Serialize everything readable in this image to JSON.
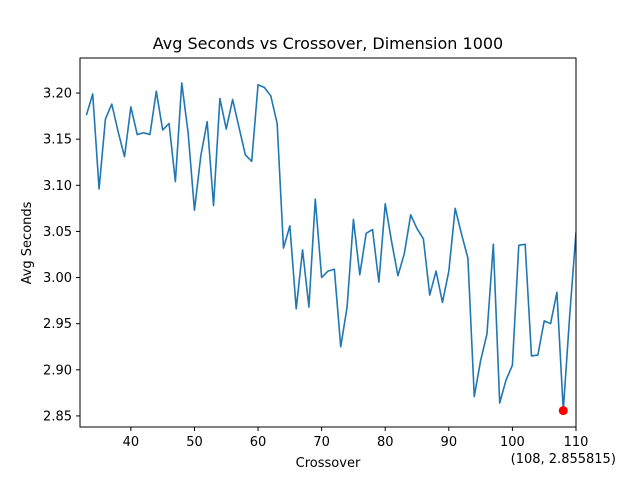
{
  "chart_data": {
    "type": "line",
    "title": "Avg Seconds vs Crossover, Dimension 1000",
    "xlabel": "Crossover",
    "ylabel": "Avg Seconds",
    "xlim": [
      32,
      110
    ],
    "ylim": [
      2.838,
      3.238
    ],
    "x_ticks": [
      40,
      50,
      60,
      70,
      80,
      90,
      100,
      110
    ],
    "x_tick_labels": [
      "40",
      "50",
      "60",
      "70",
      "80",
      "90",
      "100",
      "110"
    ],
    "y_ticks": [
      2.85,
      2.9,
      2.95,
      3.0,
      3.05,
      3.1,
      3.15,
      3.2
    ],
    "y_tick_labels": [
      "2.85",
      "2.90",
      "2.95",
      "3.00",
      "3.05",
      "3.10",
      "3.15",
      "3.20"
    ],
    "grid": false,
    "series": [
      {
        "color": "#1f77b4",
        "x": [
          33,
          34,
          35,
          36,
          37,
          38,
          39,
          40,
          41,
          42,
          43,
          44,
          45,
          46,
          47,
          48,
          49,
          50,
          51,
          52,
          53,
          54,
          55,
          56,
          57,
          58,
          59,
          60,
          61,
          62,
          63,
          64,
          65,
          66,
          67,
          68,
          69,
          70,
          71,
          72,
          73,
          74,
          75,
          76,
          77,
          78,
          79,
          80,
          81,
          82,
          83,
          84,
          85,
          86,
          87,
          88,
          89,
          90,
          91,
          92,
          93,
          94,
          95,
          96,
          97,
          98,
          99,
          100,
          101,
          102,
          103,
          104,
          105,
          106,
          107,
          108,
          109,
          110
        ],
        "y": [
          3.176,
          3.199,
          3.096,
          3.172,
          3.188,
          3.158,
          3.131,
          3.185,
          3.155,
          3.157,
          3.155,
          3.202,
          3.16,
          3.167,
          3.104,
          3.211,
          3.157,
          3.073,
          3.132,
          3.169,
          3.078,
          3.194,
          3.161,
          3.193,
          3.163,
          3.133,
          3.126,
          3.209,
          3.206,
          3.197,
          3.167,
          3.032,
          3.056,
          2.966,
          3.03,
          2.968,
          3.085,
          3.0,
          3.007,
          3.009,
          2.925,
          2.968,
          3.063,
          3.003,
          3.048,
          3.052,
          2.995,
          3.08,
          3.039,
          3.002,
          3.026,
          3.068,
          3.053,
          3.042,
          2.981,
          3.007,
          2.973,
          3.007,
          3.075,
          3.047,
          3.021,
          2.871,
          2.91,
          2.939,
          3.036,
          2.864,
          2.889,
          2.905,
          3.035,
          3.036,
          2.915,
          2.916,
          2.953,
          2.95,
          2.984,
          2.856,
          2.958,
          3.049
        ]
      }
    ],
    "highlight": {
      "x": 108,
      "y": 2.855815,
      "color": "#ff0000"
    },
    "annotation": "(108, 2.855815)"
  }
}
